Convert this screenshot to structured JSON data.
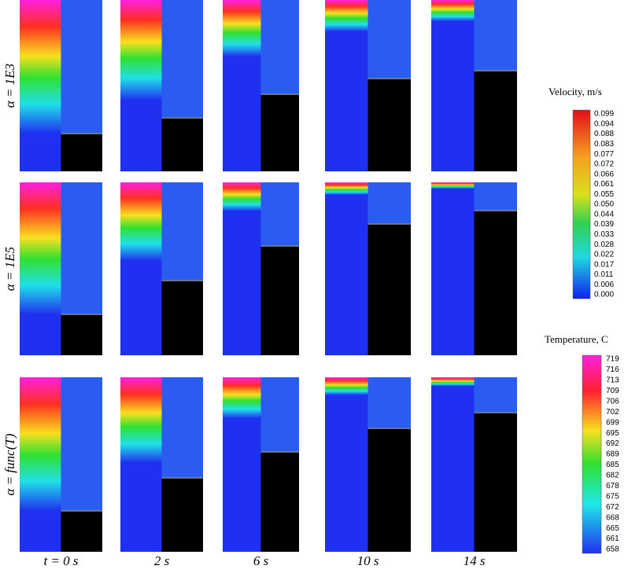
{
  "rows": {
    "labels": [
      "α = 1E3",
      "α = 1E5",
      "α = func(T)"
    ]
  },
  "columns": {
    "labels": [
      "t = 0 s",
      "2 s",
      "6 s",
      "10 s",
      "14 s"
    ]
  },
  "velocity_legend": {
    "title": "Velocity, m/s",
    "ticks": [
      "0.099",
      "0.094",
      "0.088",
      "0.083",
      "0.077",
      "0.072",
      "0.066",
      "0.061",
      "0.055",
      "0.050",
      "0.044",
      "0.039",
      "0.033",
      "0.028",
      "0.022",
      "0.017",
      "0.011",
      "0.006",
      "0.000"
    ]
  },
  "temperature_legend": {
    "title": "Temperature, C",
    "ticks": [
      "719",
      "716",
      "713",
      "709",
      "706",
      "702",
      "699",
      "695",
      "692",
      "689",
      "685",
      "682",
      "678",
      "675",
      "672",
      "668",
      "665",
      "661",
      "658"
    ]
  }
}
